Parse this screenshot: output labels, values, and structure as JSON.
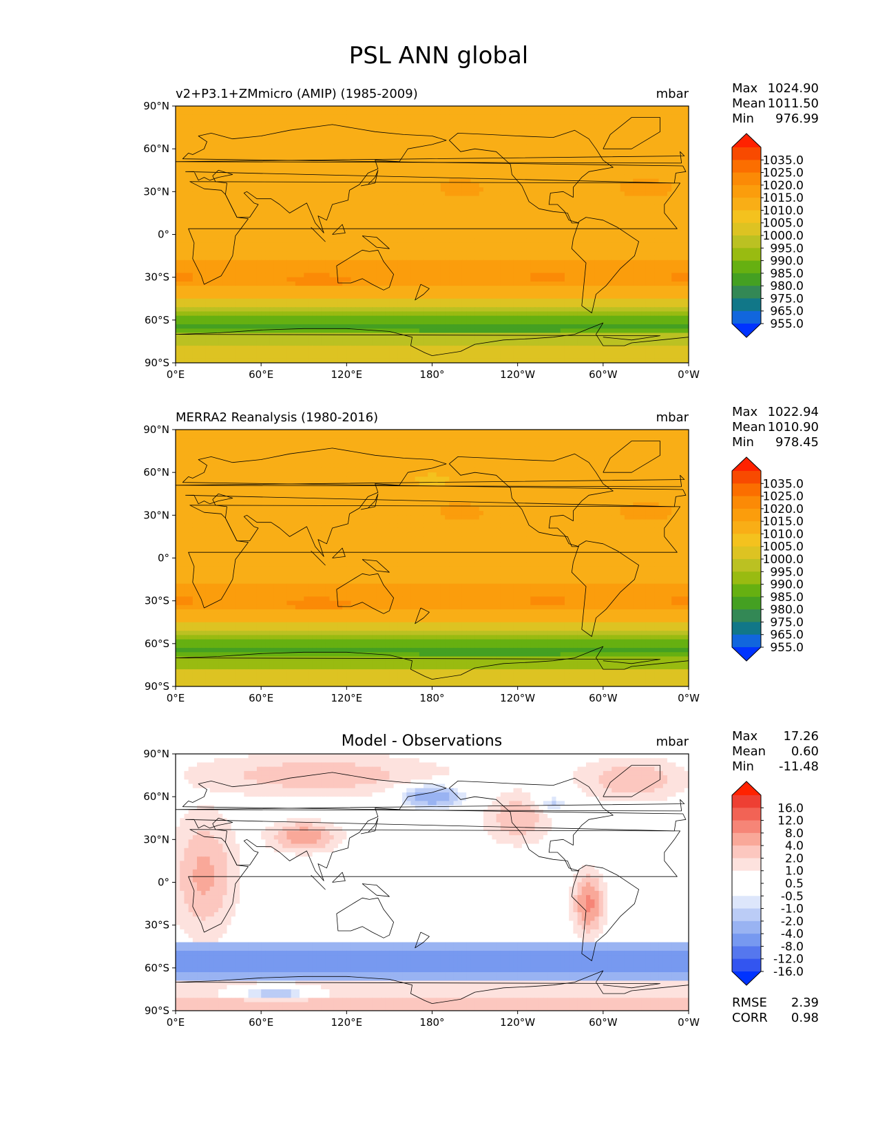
{
  "title": "PSL ANN global",
  "colors": {
    "abs_levels": [
      "#0033ff",
      "#1166dd",
      "#117788",
      "#338855",
      "#44a022",
      "#66b011",
      "#99bb11",
      "#bbc122",
      "#ddc322",
      "#f4c21e",
      "#f9ae16",
      "#fb9d0c",
      "#fb8a06",
      "#fb6e00",
      "#f84a00",
      "#ff2200"
    ],
    "diff_levels": [
      "#0033ff",
      "#3355f0",
      "#5577ee",
      "#7799f0",
      "#99b3f2",
      "#bbccf6",
      "#dde6fb",
      "#ffffff",
      "#ffffff",
      "#fde2de",
      "#fcc7bf",
      "#f9a899",
      "#f68577",
      "#f26355",
      "#ee3f33",
      "#ff2200"
    ],
    "coast": "#000000"
  },
  "chart_data": [
    {
      "type": "heatmap",
      "name": "model",
      "title": "v2+P3.1+ZMmicro (AMIP) (1985-2009)",
      "units": "mbar",
      "stats": [
        {
          "label": "Max",
          "value": "1024.90"
        },
        {
          "label": "Mean",
          "value": "1011.50"
        },
        {
          "label": "Min",
          "value": "976.99"
        }
      ],
      "x_ticks": [
        "0°E",
        "60°E",
        "120°E",
        "180°",
        "120°W",
        "60°W",
        "0°W"
      ],
      "y_ticks": [
        "90°N",
        "60°N",
        "30°N",
        "0°",
        "30°S",
        "60°S",
        "90°S"
      ],
      "xlim": [
        0,
        360
      ],
      "ylim": [
        -90,
        90
      ],
      "colorbar_levels": [
        "1035.0",
        "1025.0",
        "1020.0",
        "1015.0",
        "1010.0",
        "1005.0",
        "1000.0",
        "995.0",
        "990.0",
        "985.0",
        "980.0",
        "975.0",
        "965.0",
        "955.0"
      ]
    },
    {
      "type": "heatmap",
      "name": "obs",
      "title": "MERRA2 Reanalysis (1980-2016)",
      "units": "mbar",
      "stats": [
        {
          "label": "Max",
          "value": "1022.94"
        },
        {
          "label": "Mean",
          "value": "1010.90"
        },
        {
          "label": "Min",
          "value": "978.45"
        }
      ],
      "x_ticks": [
        "0°E",
        "60°E",
        "120°E",
        "180°",
        "120°W",
        "60°W",
        "0°W"
      ],
      "y_ticks": [
        "90°N",
        "60°N",
        "30°N",
        "0°",
        "30°S",
        "60°S",
        "90°S"
      ],
      "xlim": [
        0,
        360
      ],
      "ylim": [
        -90,
        90
      ],
      "colorbar_levels": [
        "1035.0",
        "1025.0",
        "1020.0",
        "1015.0",
        "1010.0",
        "1005.0",
        "1000.0",
        "995.0",
        "990.0",
        "985.0",
        "980.0",
        "975.0",
        "965.0",
        "955.0"
      ]
    },
    {
      "type": "heatmap",
      "name": "diff",
      "title": "Model - Observations",
      "units": "mbar",
      "stats": [
        {
          "label": "Max",
          "value": "17.26"
        },
        {
          "label": "Mean",
          "value": "0.60"
        },
        {
          "label": "Min",
          "value": "-11.48"
        }
      ],
      "extra_stats": [
        {
          "label": "RMSE",
          "value": "2.39"
        },
        {
          "label": "CORR",
          "value": "0.98"
        }
      ],
      "x_ticks": [
        "0°E",
        "60°E",
        "120°E",
        "180°",
        "120°W",
        "60°W",
        "0°W"
      ],
      "y_ticks": [
        "90°N",
        "60°N",
        "30°N",
        "0°",
        "30°S",
        "60°S",
        "90°S"
      ],
      "xlim": [
        0,
        360
      ],
      "ylim": [
        -90,
        90
      ],
      "colorbar_levels": [
        "16.0",
        "12.0",
        "8.0",
        "4.0",
        "2.0",
        "1.0",
        "0.5",
        "-0.5",
        "-1.0",
        "-2.0",
        "-4.0",
        "-8.0",
        "-12.0",
        "-16.0"
      ]
    }
  ]
}
